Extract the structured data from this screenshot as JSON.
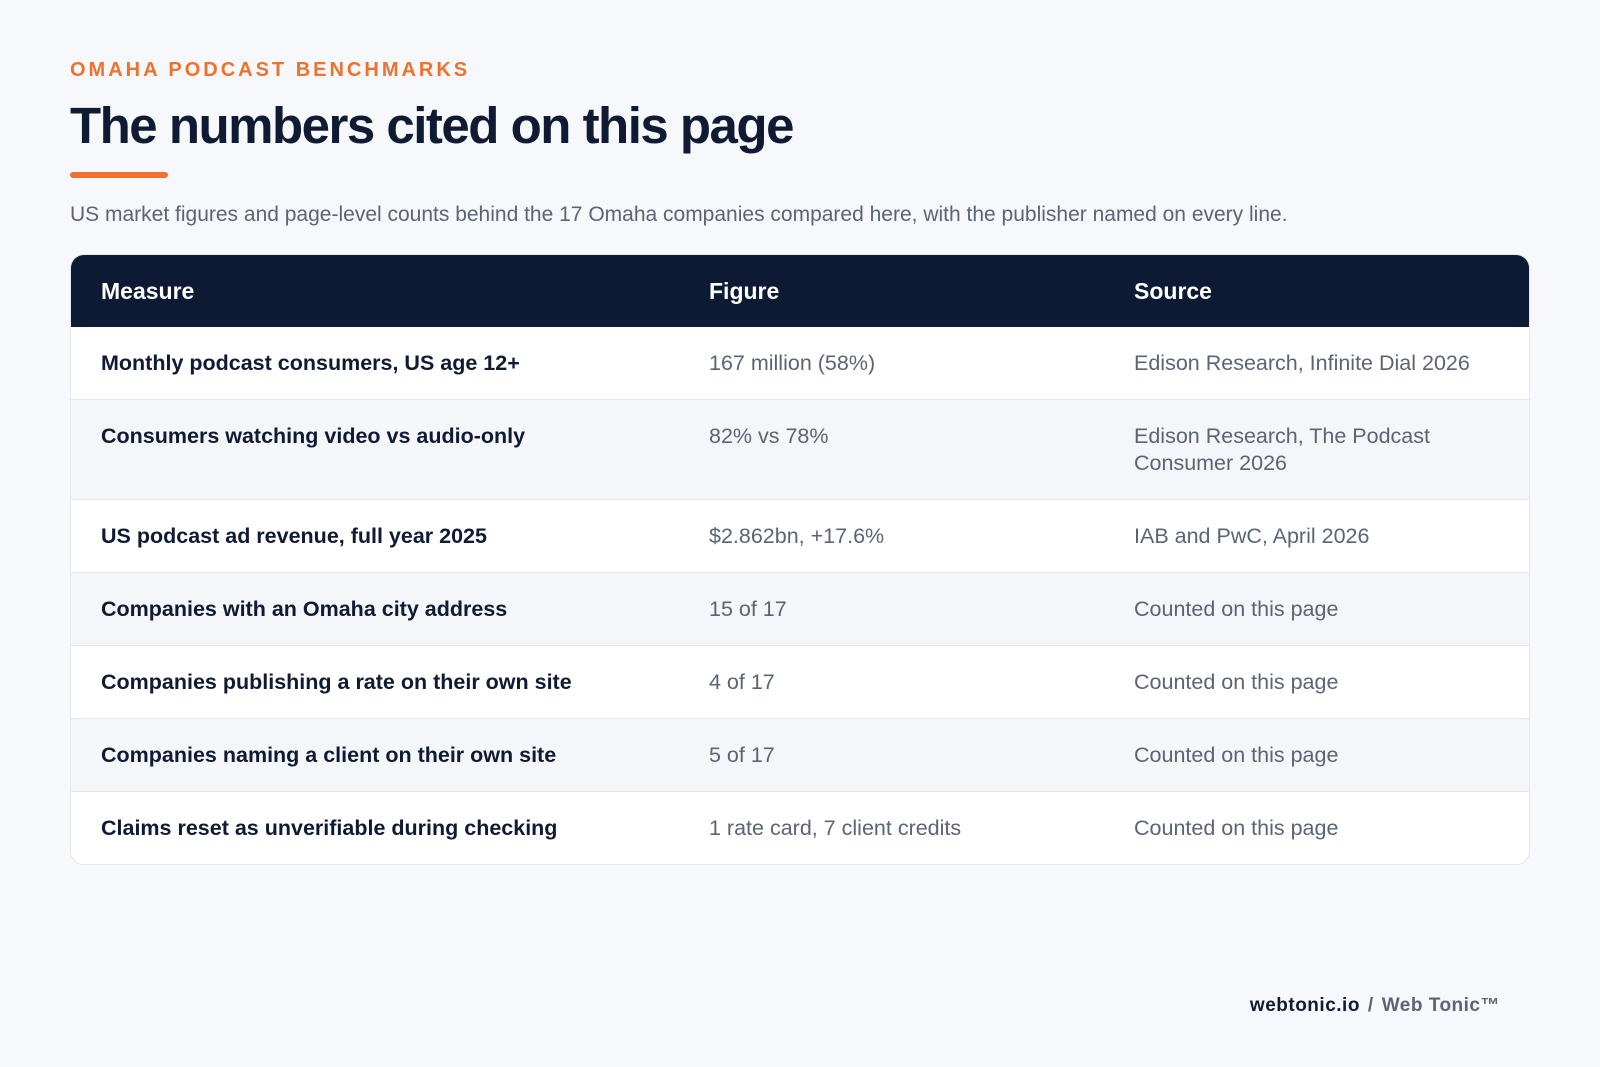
{
  "header": {
    "eyebrow": "OMAHA PODCAST BENCHMARKS",
    "title": "The numbers cited on this page",
    "subtitle": "US market figures and page-level counts behind the 17 Omaha companies compared here, with the publisher named on every line."
  },
  "table": {
    "columns": [
      "Measure",
      "Figure",
      "Source"
    ],
    "rows": [
      {
        "measure": "Monthly podcast consumers, US age 12+",
        "figure": "167 million (58%)",
        "source": "Edison Research, Infinite Dial 2026"
      },
      {
        "measure": "Consumers watching video vs audio-only",
        "figure": "82% vs 78%",
        "source": "Edison Research, The Podcast Consumer 2026"
      },
      {
        "measure": "US podcast ad revenue, full year 2025",
        "figure": "$2.862bn, +17.6%",
        "source": "IAB and PwC, April 2026"
      },
      {
        "measure": "Companies with an Omaha city address",
        "figure": "15 of 17",
        "source": "Counted on this page"
      },
      {
        "measure": "Companies publishing a rate on their own site",
        "figure": "4 of 17",
        "source": "Counted on this page"
      },
      {
        "measure": "Companies naming a client on their own site",
        "figure": "5 of 17",
        "source": "Counted on this page"
      },
      {
        "measure": "Claims reset as unverifiable during checking",
        "figure": "1 rate card, 7 client credits",
        "source": "Counted on this page"
      }
    ]
  },
  "footer": {
    "domain": "webtonic.io",
    "separator": "/",
    "brand": "Web Tonic™"
  },
  "colors": {
    "accent": "#ee7130",
    "navy": "#0d1a33",
    "muted_text": "#5b6475",
    "background": "#f6f8fb"
  }
}
